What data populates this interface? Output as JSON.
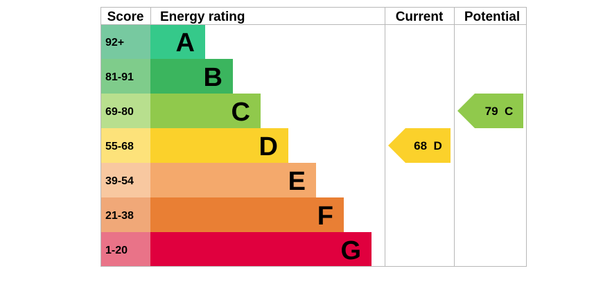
{
  "chart_data": {
    "type": "bar",
    "headers": {
      "score": "Score",
      "rating": "Energy rating",
      "current": "Current",
      "potential": "Potential"
    },
    "bands": [
      {
        "score": "92+",
        "letter": "A",
        "score_color": "#77c9a0",
        "bar_color": "#35c98a"
      },
      {
        "score": "81-91",
        "letter": "B",
        "score_color": "#7fcc8b",
        "bar_color": "#3bb55e"
      },
      {
        "score": "69-80",
        "letter": "C",
        "score_color": "#b8df8e",
        "bar_color": "#90c94c"
      },
      {
        "score": "55-68",
        "letter": "D",
        "score_color": "#fde27a",
        "bar_color": "#fbd12b"
      },
      {
        "score": "39-54",
        "letter": "E",
        "score_color": "#f8c8a0",
        "bar_color": "#f4a96c"
      },
      {
        "score": "21-38",
        "letter": "F",
        "score_color": "#f0a878",
        "bar_color": "#e97f34"
      },
      {
        "score": "1-20",
        "letter": "G",
        "score_color": "#e97388",
        "bar_color": "#e0003e"
      }
    ],
    "current": {
      "value": 68,
      "letter": "D",
      "label": "68  D",
      "color": "#fbd12b"
    },
    "potential": {
      "value": 79,
      "letter": "C",
      "label": "79  C",
      "color": "#90c94c"
    }
  }
}
